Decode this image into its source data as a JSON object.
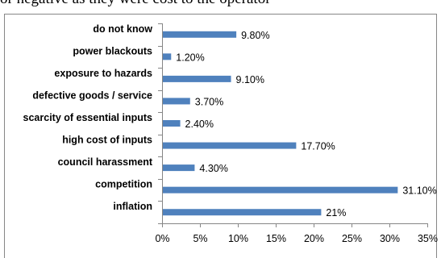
{
  "header_text": "or negative as they were cost to the operator",
  "colors": {
    "bar": "#4f81bd",
    "axis": "#868686",
    "frame": "#868686"
  },
  "chart_data": {
    "type": "bar",
    "orientation": "horizontal",
    "categories": [
      "do not know",
      "power blackouts",
      "exposure to hazards",
      "defective goods / service",
      "scarcity of essential inputs",
      "high cost of inputs",
      "council harassment",
      "competition",
      "inflation"
    ],
    "values": [
      9.8,
      1.2,
      9.1,
      3.7,
      2.4,
      17.7,
      4.3,
      31.1,
      21
    ],
    "data_labels": [
      "9.80%",
      "1.20%",
      "9.10%",
      "3.70%",
      "2.40%",
      "17.70%",
      "4.30%",
      "31.10%",
      "21%"
    ],
    "x_ticks": [
      "0%",
      "5%",
      "10%",
      "15%",
      "20%",
      "25%",
      "30%",
      "35%"
    ],
    "xlim": [
      0,
      35
    ],
    "title": "",
    "xlabel": "",
    "ylabel": "",
    "grid": false,
    "legend": "none"
  }
}
